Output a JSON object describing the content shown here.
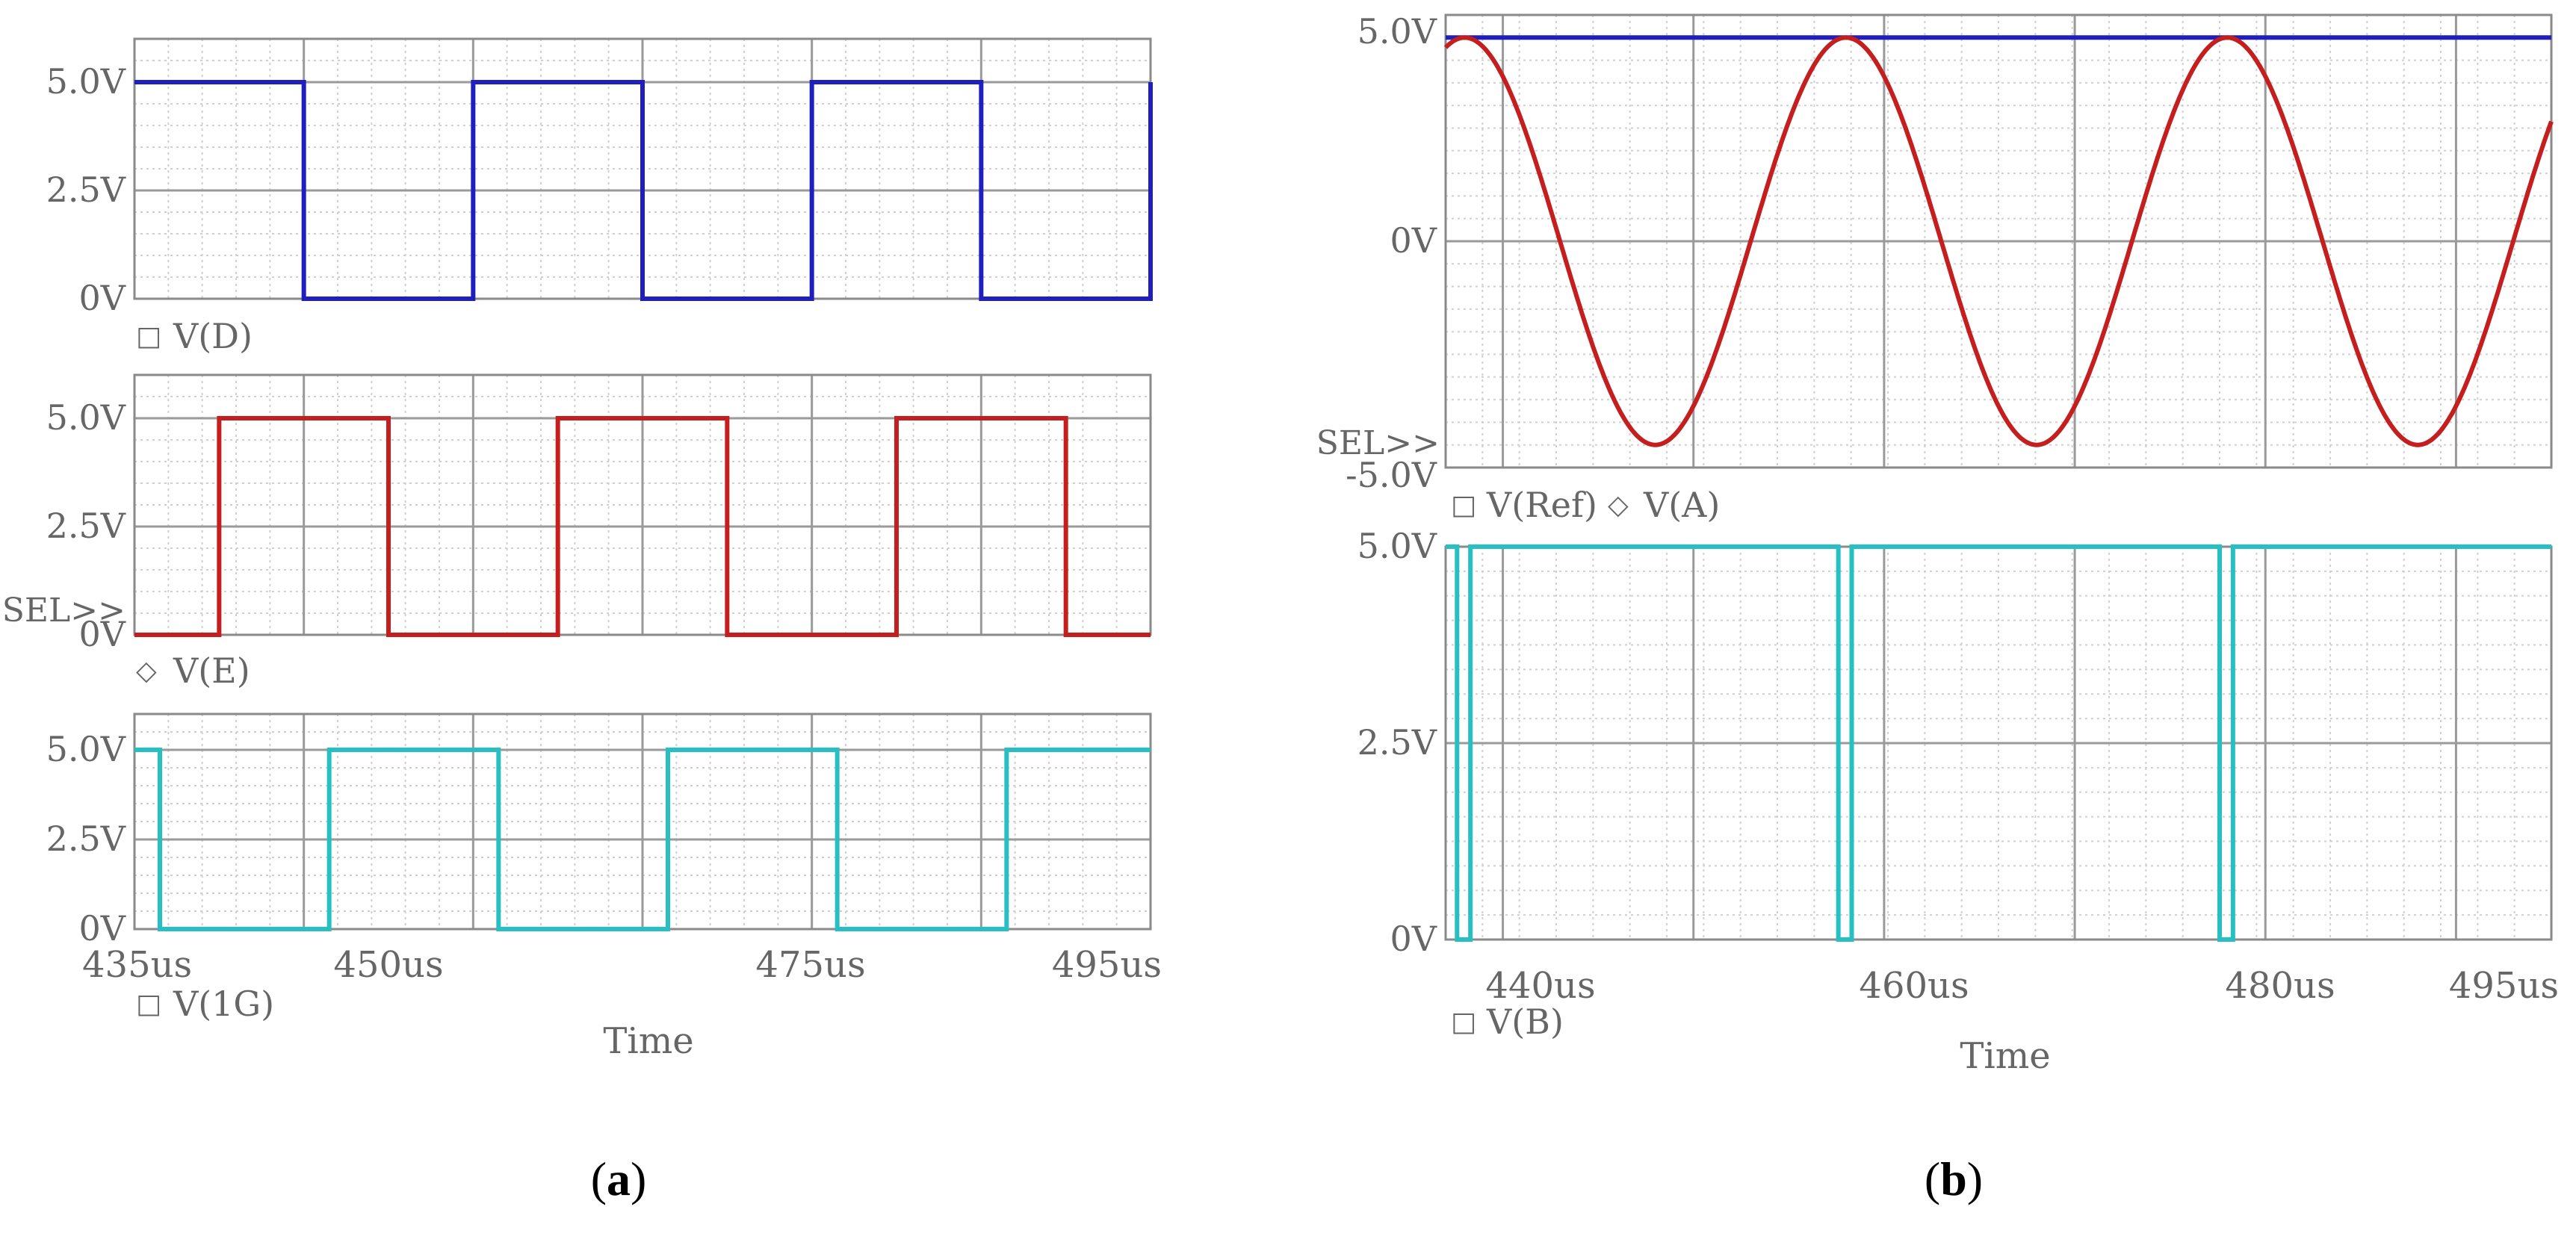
{
  "chart_data": [
    {
      "id": "a",
      "panel_label": "a",
      "type": "line",
      "xlabel": "Time",
      "x_ticks": [
        "435us",
        "450us",
        "475us",
        "495us"
      ],
      "x_range_us": [
        435,
        495
      ],
      "grid": true,
      "plots": [
        {
          "id": "a1",
          "yticks": [
            "5.0V",
            "2.5V",
            "0V"
          ],
          "ylim": [
            0,
            6
          ],
          "sel_marker": "",
          "series": [
            {
              "name": "V(D)",
              "marker": "□",
              "color": "#1f1fbf",
              "low": 0,
              "high": 5,
              "transitions_us": [
                445,
                455,
                465,
                475,
                485,
                495
              ],
              "initial": "high"
            }
          ]
        },
        {
          "id": "a2",
          "yticks": [
            "5.0V",
            "2.5V",
            "0V"
          ],
          "ylim": [
            0,
            6
          ],
          "sel_marker": "SEL>>",
          "series": [
            {
              "name": "V(E)",
              "marker": "◇",
              "color": "#c41e1e",
              "low": 0,
              "high": 5,
              "transitions_us": [
                440,
                450,
                460,
                470,
                480,
                490
              ],
              "initial": "low"
            }
          ]
        },
        {
          "id": "a3",
          "yticks": [
            "5.0V",
            "2.5V",
            "0V"
          ],
          "ylim": [
            0,
            6
          ],
          "sel_marker": "",
          "series": [
            {
              "name": "V(1G)",
              "marker": "□",
              "color": "#26bfc2",
              "low": 0,
              "high": 5,
              "transitions_us": [
                436.5,
                446.5,
                456.5,
                466.5,
                476.5,
                486.5
              ],
              "initial": "high"
            }
          ]
        }
      ]
    },
    {
      "id": "b",
      "panel_label": "b",
      "type": "line",
      "xlabel": "Time",
      "x_ticks": [
        "440us",
        "460us",
        "480us",
        "495us"
      ],
      "x_range_us": [
        437,
        495
      ],
      "grid": true,
      "plots": [
        {
          "id": "b1",
          "yticks": [
            "5.0V",
            "0V",
            "-5.0V"
          ],
          "ylim": [
            -5,
            5
          ],
          "sel_marker": "SEL>>",
          "series": [
            {
              "name": "V(Ref)",
              "marker": "□",
              "color": "#1f1fbf",
              "constant": 4.5
            },
            {
              "name": "V(A)",
              "marker": "◇",
              "color": "#c41e1e",
              "amplitude": 4.5,
              "period_us": 20,
              "peaks_at_us": [
                438,
                458,
                478
              ]
            }
          ]
        },
        {
          "id": "b2",
          "yticks": [
            "5.0V",
            "2.5V",
            "0V"
          ],
          "ylim": [
            0,
            5
          ],
          "sel_marker": "",
          "series": [
            {
              "name": "V(B)",
              "marker": "□",
              "color": "#26bfc2",
              "low": 0,
              "high": 5,
              "low_pulses_us": [
                [
                  437.6,
                  438.3
                ],
                [
                  457.6,
                  458.3
                ],
                [
                  477.6,
                  478.3
                ]
              ]
            }
          ]
        }
      ]
    }
  ]
}
